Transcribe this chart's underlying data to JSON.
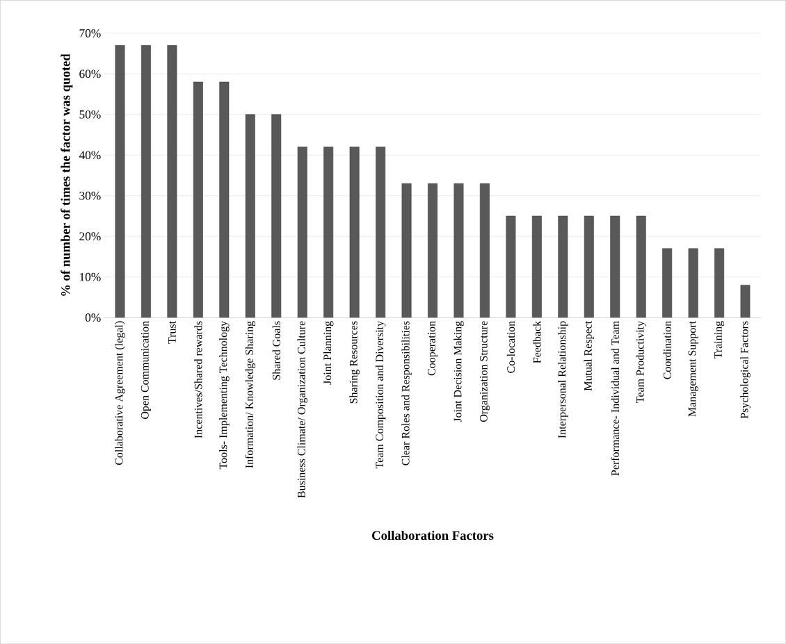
{
  "chart_data": {
    "type": "bar",
    "xlabel": "Collaboration Factors",
    "ylabel": "% of number of times the factor was quoted",
    "categories": [
      "Collaborative Agreement (legal)",
      "Open Communication",
      "Trust",
      "Incentives/Shared rewards",
      "Tools- Implementing Technology",
      "Information/ Knowledge Sharing",
      "Shared Goals",
      "Business Climate/ Organization Culture",
      "Joint Planning",
      "Sharing Resources",
      "Team Composition and Diversity",
      "Clear Roles and Responsibilities",
      "Cooperation",
      "Joint Decision Making",
      "Organization Structure",
      "Co-location",
      "Feedback",
      "Interpersonal Relationship",
      "Mutual Respect",
      "Performance- Individual and Team",
      "Team Productivity",
      "Coordination",
      "Management Support",
      "Training",
      "Psychological Factors"
    ],
    "values": [
      67,
      67,
      67,
      58,
      58,
      50,
      50,
      42,
      42,
      42,
      42,
      33,
      33,
      33,
      33,
      25,
      25,
      25,
      25,
      25,
      25,
      17,
      17,
      17,
      8
    ],
    "color": "#595959",
    "ylim": [
      0,
      70
    ],
    "yticks": [
      {
        "value": 0,
        "label": "0%"
      },
      {
        "value": 10,
        "label": "10%"
      },
      {
        "value": 20,
        "label": "20%"
      },
      {
        "value": 30,
        "label": "30%"
      },
      {
        "value": 40,
        "label": "40%"
      },
      {
        "value": 50,
        "label": "50%"
      },
      {
        "value": 60,
        "label": "60%"
      },
      {
        "value": 70,
        "label": "70%"
      }
    ],
    "grid": "y"
  }
}
